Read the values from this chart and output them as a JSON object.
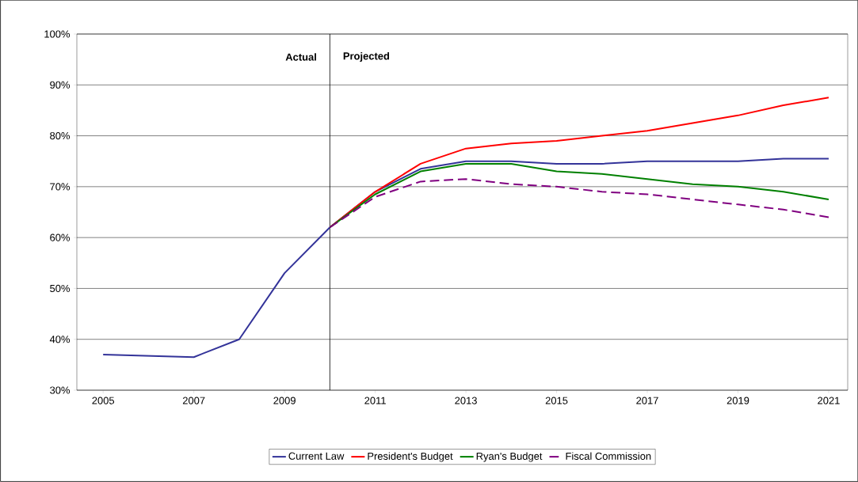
{
  "chart_data": {
    "type": "line",
    "x": [
      2005,
      2007,
      2008,
      2009,
      2010,
      2011,
      2012,
      2013,
      2014,
      2015,
      2016,
      2017,
      2018,
      2019,
      2020,
      2021
    ],
    "series": [
      {
        "name": "Current Law",
        "color": "#333399",
        "line_style": "solid",
        "values": [
          37,
          36.5,
          40,
          53,
          62,
          69,
          73.5,
          75,
          75,
          74.5,
          74.5,
          75,
          75,
          75,
          75.5,
          75.5
        ]
      },
      {
        "name": "President's Budget",
        "color": "#ff0000",
        "line_style": "solid",
        "values": [
          null,
          null,
          null,
          null,
          62,
          69,
          74.5,
          77.5,
          78.5,
          79,
          80,
          81,
          82.5,
          84,
          86,
          87.5
        ]
      },
      {
        "name": "Ryan's Budget",
        "color": "#008000",
        "line_style": "solid",
        "values": [
          null,
          null,
          null,
          null,
          62,
          68.5,
          73,
          74.5,
          74.5,
          73,
          72.5,
          71.5,
          70.5,
          70,
          69,
          67.5
        ]
      },
      {
        "name": "Fiscal Commission",
        "color": "#800080",
        "line_style": "dashed",
        "values": [
          null,
          null,
          null,
          null,
          62,
          68,
          71,
          71.5,
          70.5,
          70,
          69,
          68.5,
          67.5,
          66.5,
          65.5,
          64
        ]
      }
    ],
    "xlim": [
      2004.42,
      2021.42
    ],
    "xticks": [
      2005,
      2007,
      2009,
      2011,
      2013,
      2015,
      2017,
      2019,
      2021
    ],
    "ylim": [
      30,
      100
    ],
    "yticks": [
      {
        "value": 30,
        "label": "30%"
      },
      {
        "value": 40,
        "label": "40%"
      },
      {
        "value": 50,
        "label": "50%"
      },
      {
        "value": 60,
        "label": "60%"
      },
      {
        "value": 70,
        "label": "70%"
      },
      {
        "value": 80,
        "label": "80%"
      },
      {
        "value": 90,
        "label": "90%"
      },
      {
        "value": 100,
        "label": "100%"
      }
    ],
    "ref_lines": [
      {
        "axis": "x",
        "value": 2010,
        "color": "#000000"
      }
    ],
    "annotations": [
      "Actual",
      "Projected"
    ],
    "grid": "y",
    "legend": "bottom",
    "marker": "none"
  }
}
